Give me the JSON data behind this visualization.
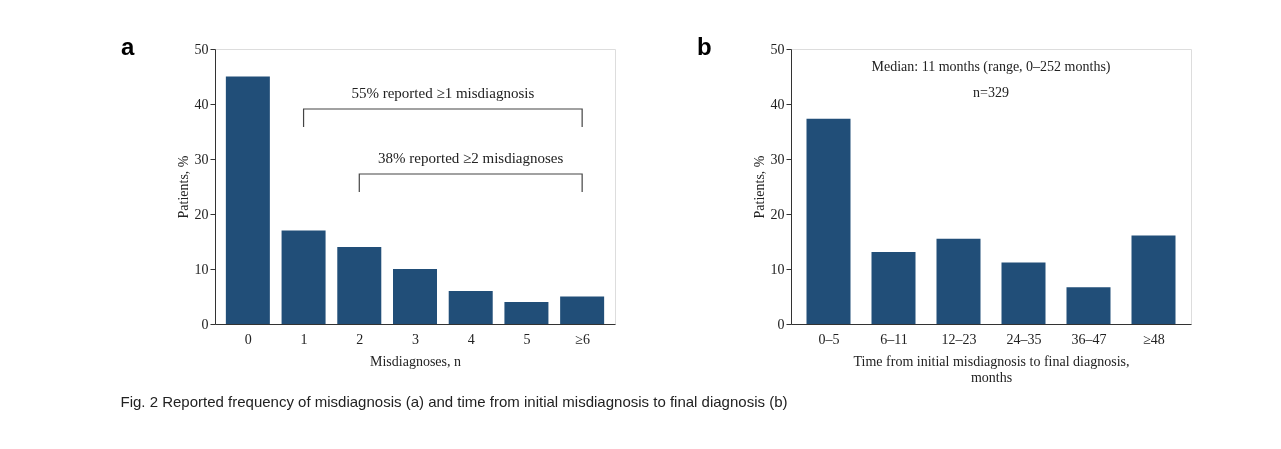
{
  "chart_data": [
    {
      "type": "bar",
      "title": "a",
      "xlabel": "Misdiagnoses, n",
      "ylabel": "Patients, %",
      "categories": [
        "0",
        "1",
        "2",
        "3",
        "4",
        "5",
        "≥6"
      ],
      "values": [
        45,
        17,
        14,
        10,
        6,
        4,
        5
      ],
      "color": "#214e78",
      "ylim": [
        0,
        50
      ],
      "yticks": [
        0,
        10,
        20,
        30,
        40,
        50
      ],
      "grid": false,
      "annotations": [
        "55% reported ≥1 misdiagnosis",
        "38% reported ≥2 misdiagnoses",
        "Fig. 2 Reported frequency of misdiagnosis (a) and time from initial misdiagnosis to final diagnosis (b)"
      ]
    },
    {
      "type": "bar",
      "title": "b",
      "xlabel": "Time from initial misdiagnosis to final diagnosis, months",
      "ylabel": "Patients, %",
      "categories": [
        "0–5",
        "6–11",
        "12–23",
        "24–35",
        "36–47",
        "≥48"
      ],
      "values": [
        37.3,
        13.1,
        15.5,
        11.2,
        6.7,
        16.1
      ],
      "color": "#214e78",
      "ylim": [
        0,
        50
      ],
      "yticks": [
        0,
        10,
        20,
        30,
        40,
        50
      ],
      "grid": false,
      "annotations": [
        "Median: 11 months (range, 0–252 months)",
        "n=329"
      ]
    }
  ]
}
